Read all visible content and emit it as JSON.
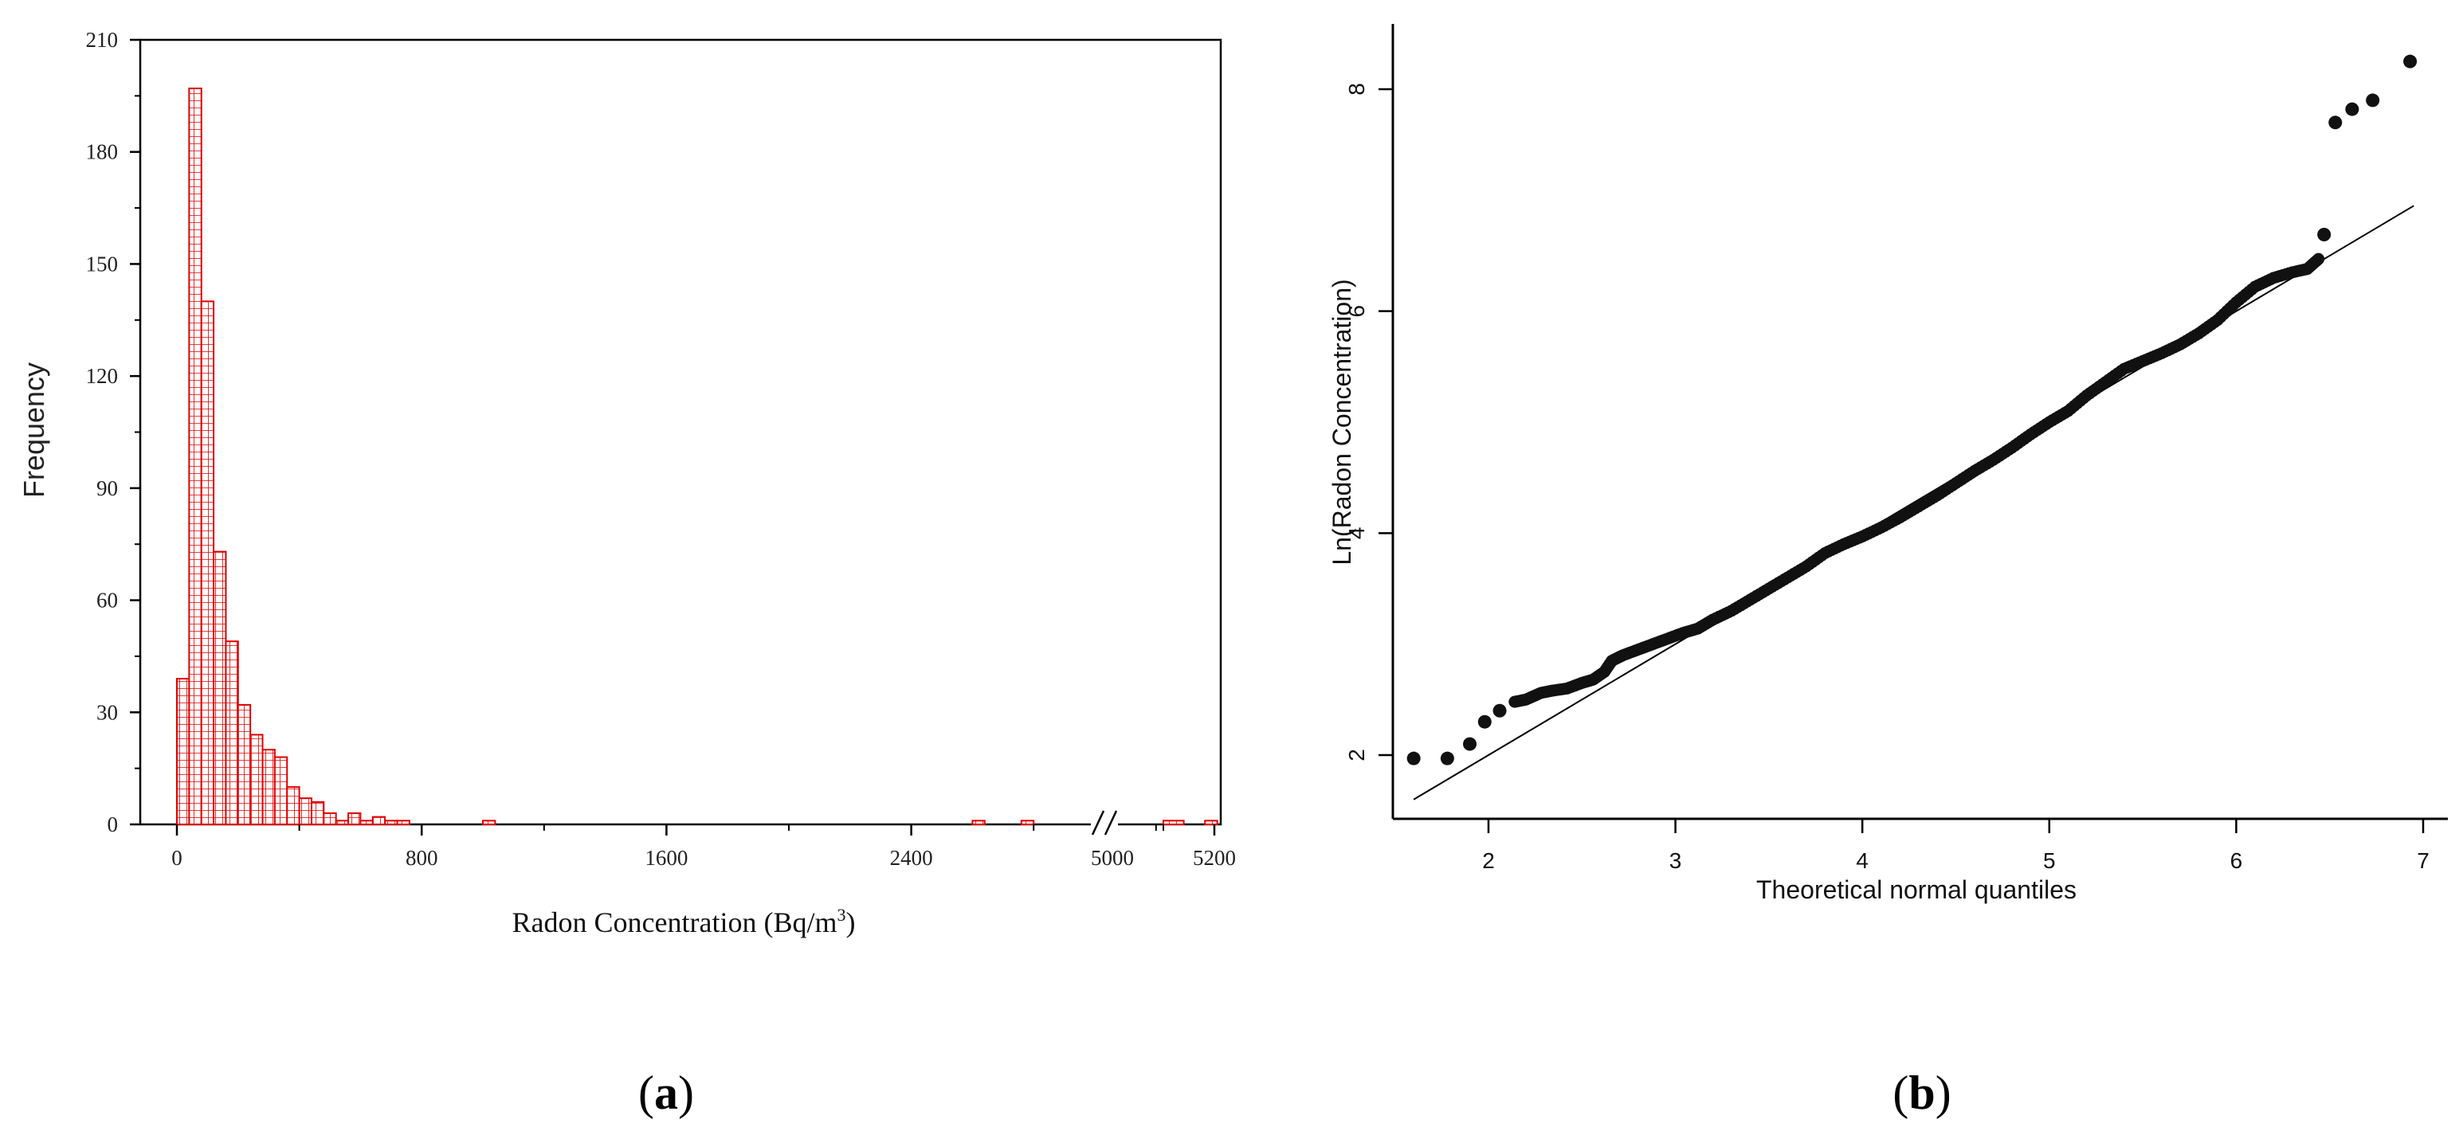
{
  "chart_data": [
    {
      "panel_label_letter": "a",
      "type": "bar",
      "subtype": "histogram",
      "bar_fill_pattern": "red-grid-hatch",
      "bar_color": "#e00000",
      "ylabel": "Frequency",
      "xlabel": "Radon Concentration (Bq/m",
      "xlabel_superscript": "3",
      "xlabel_tail": ")",
      "ylim": [
        0,
        210
      ],
      "y_ticks": [
        "0",
        "30",
        "60",
        "90",
        "120",
        "150",
        "180",
        "210"
      ],
      "x_ticks": [
        "0",
        "800",
        "1600",
        "2400",
        "5000",
        "5200"
      ],
      "x_axis_break": "between 2400 and 5000",
      "bin_width": 40,
      "bins": [
        {
          "x0": 0,
          "count": 39
        },
        {
          "x0": 40,
          "count": 197
        },
        {
          "x0": 80,
          "count": 140
        },
        {
          "x0": 120,
          "count": 73
        },
        {
          "x0": 160,
          "count": 49
        },
        {
          "x0": 200,
          "count": 32
        },
        {
          "x0": 240,
          "count": 24
        },
        {
          "x0": 280,
          "count": 20
        },
        {
          "x0": 320,
          "count": 18
        },
        {
          "x0": 360,
          "count": 10
        },
        {
          "x0": 400,
          "count": 7
        },
        {
          "x0": 440,
          "count": 6
        },
        {
          "x0": 480,
          "count": 3
        },
        {
          "x0": 520,
          "count": 1
        },
        {
          "x0": 560,
          "count": 3
        },
        {
          "x0": 600,
          "count": 1
        },
        {
          "x0": 640,
          "count": 2
        },
        {
          "x0": 680,
          "count": 1
        },
        {
          "x0": 720,
          "count": 1
        },
        {
          "x0": 1000,
          "count": 1
        },
        {
          "x0": 2600,
          "count": 1
        },
        {
          "x0": 2760,
          "count": 1
        },
        {
          "x0": 3360,
          "count": 1
        },
        {
          "x0": 5100,
          "count": 1
        }
      ]
    },
    {
      "panel_label_letter": "b",
      "type": "scatter",
      "subtype": "normal-qq-plot",
      "xlabel": "Theoretical normal quantiles",
      "ylabel": "Ln(Radon Concentration)",
      "xlim": [
        1.5,
        7.15
      ],
      "ylim": [
        1.4,
        8.35
      ],
      "x_ticks": [
        "2",
        "3",
        "4",
        "5",
        "6",
        "7"
      ],
      "y_ticks": [
        "2",
        "4",
        "6",
        "8"
      ],
      "reference_line": {
        "x": [
          1.6,
          6.95
        ],
        "y": [
          1.6,
          6.95
        ]
      },
      "points": [
        [
          1.6,
          1.97
        ],
        [
          1.78,
          1.97
        ],
        [
          1.9,
          2.1
        ],
        [
          1.98,
          2.3
        ],
        [
          2.06,
          2.4
        ],
        [
          2.14,
          2.48
        ],
        [
          2.2,
          2.5
        ],
        [
          2.28,
          2.56
        ],
        [
          2.34,
          2.58
        ],
        [
          2.42,
          2.6
        ],
        [
          2.5,
          2.65
        ],
        [
          2.56,
          2.68
        ],
        [
          2.62,
          2.75
        ],
        [
          2.66,
          2.85
        ],
        [
          2.72,
          2.9
        ],
        [
          2.8,
          2.95
        ],
        [
          2.88,
          3.0
        ],
        [
          2.96,
          3.05
        ],
        [
          3.04,
          3.1
        ],
        [
          3.12,
          3.14
        ],
        [
          3.2,
          3.22
        ],
        [
          3.3,
          3.3
        ],
        [
          3.4,
          3.4
        ],
        [
          3.5,
          3.5
        ],
        [
          3.6,
          3.6
        ],
        [
          3.7,
          3.7
        ],
        [
          3.8,
          3.82
        ],
        [
          3.9,
          3.9
        ],
        [
          4.0,
          3.97
        ],
        [
          4.1,
          4.05
        ],
        [
          4.2,
          4.14
        ],
        [
          4.3,
          4.24
        ],
        [
          4.4,
          4.34
        ],
        [
          4.5,
          4.45
        ],
        [
          4.6,
          4.56
        ],
        [
          4.7,
          4.66
        ],
        [
          4.8,
          4.77
        ],
        [
          4.9,
          4.89
        ],
        [
          5.0,
          5.0
        ],
        [
          5.1,
          5.1
        ],
        [
          5.2,
          5.24
        ],
        [
          5.3,
          5.36
        ],
        [
          5.4,
          5.48
        ],
        [
          5.5,
          5.55
        ],
        [
          5.6,
          5.62
        ],
        [
          5.7,
          5.7
        ],
        [
          5.8,
          5.8
        ],
        [
          5.9,
          5.92
        ],
        [
          6.0,
          6.08
        ],
        [
          6.1,
          6.22
        ],
        [
          6.2,
          6.3
        ],
        [
          6.3,
          6.35
        ],
        [
          6.38,
          6.38
        ],
        [
          6.44,
          6.47
        ],
        [
          6.47,
          6.69
        ],
        [
          6.53,
          7.7
        ],
        [
          6.62,
          7.82
        ],
        [
          6.73,
          7.9
        ],
        [
          6.93,
          8.25
        ]
      ]
    }
  ]
}
